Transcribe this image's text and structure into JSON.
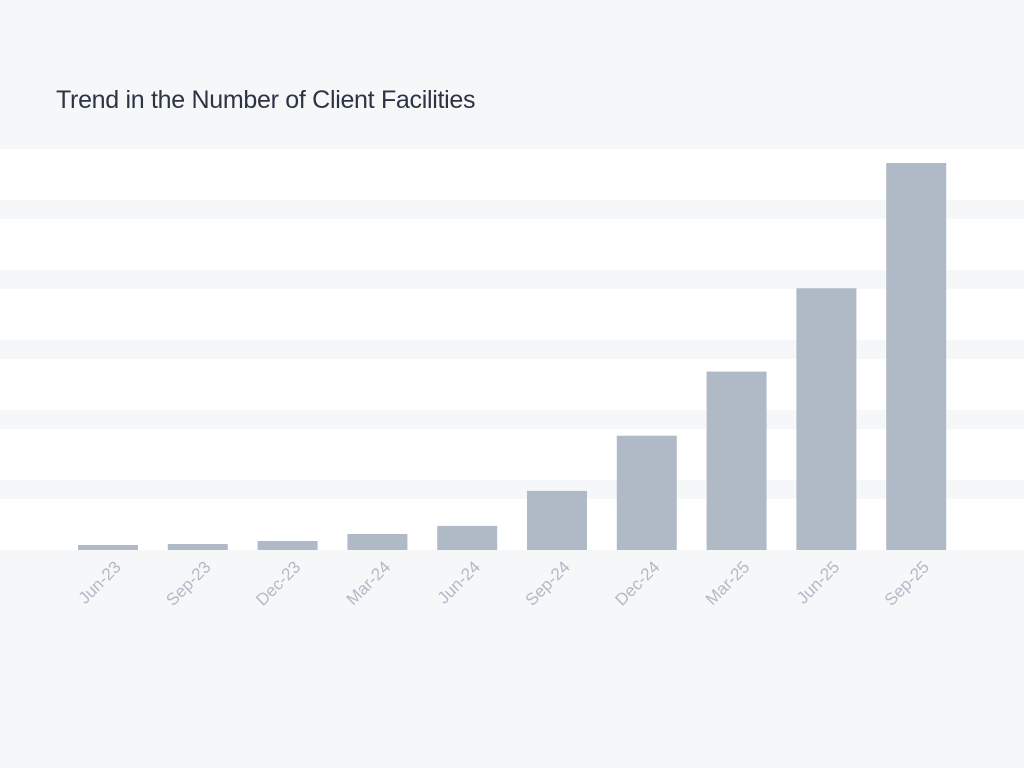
{
  "chart_data": {
    "type": "bar",
    "title": "Trend in the Number of Client Facilities",
    "xlabel": "",
    "ylabel": "",
    "categories": [
      "Jun-23",
      "Sep-23",
      "Dec-23",
      "Mar-24",
      "Jun-24",
      "Sep-24",
      "Dec-24",
      "Mar-25",
      "Jun-25",
      "Sep-25"
    ],
    "series": [
      {
        "values": [
          5,
          6,
          9,
          16,
          24,
          59,
          114,
          178,
          261,
          386
        ]
      }
    ],
    "ylim": [
      0,
      400
    ],
    "grid": "horizontal bands",
    "legend": "none",
    "y_tick_labels_shown": false
  },
  "colors": {
    "background": "#f6f7f9",
    "plot_band": "#ffffff",
    "bar": "#b0bac7",
    "title": "#2c3444",
    "tick_label": "#b2bac7"
  }
}
